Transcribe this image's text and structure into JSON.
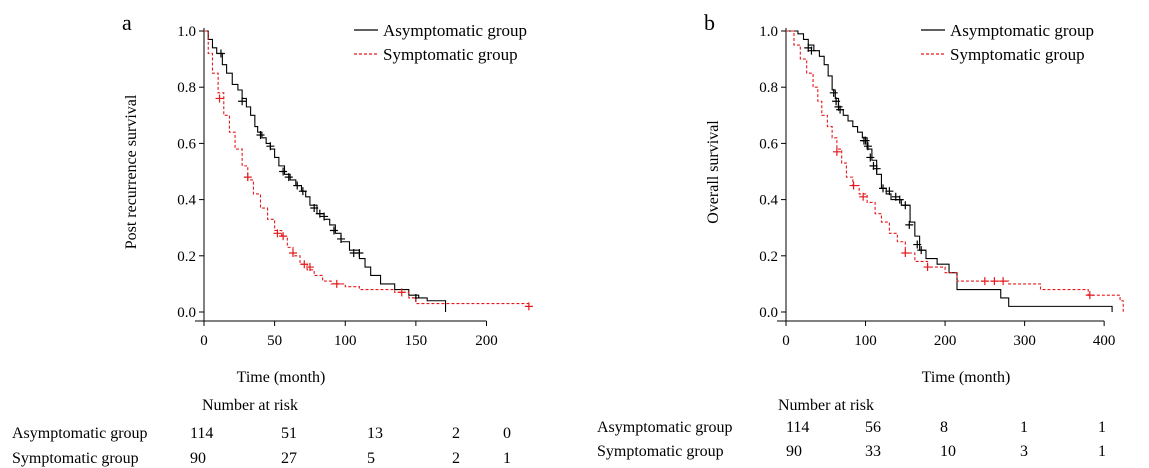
{
  "panels": [
    {
      "letter": "a",
      "ylabel": "Post recurrence survival",
      "xlabel": "Time (month)",
      "risk_title": "Number at risk",
      "risk_rows": [
        {
          "label": "Asymptomatic group",
          "values": [
            "114",
            "51",
            "13",
            "2",
            "0"
          ]
        },
        {
          "label": "Symptomatic group",
          "values": [
            "90",
            "27",
            "5",
            "2",
            "1"
          ]
        }
      ]
    },
    {
      "letter": "b",
      "ylabel": "Overall survival",
      "xlabel": "Time (month)",
      "risk_title": "Number at risk",
      "risk_rows": [
        {
          "label": "Asymptomatic group",
          "values": [
            "114",
            "56",
            "8",
            "1",
            "1"
          ]
        },
        {
          "label": "Symptomatic group",
          "values": [
            "90",
            "33",
            "10",
            "3",
            "1"
          ]
        }
      ]
    }
  ],
  "chart_data": [
    {
      "type": "line",
      "subtype": "kaplan-meier step",
      "title": "",
      "xlabel": "Time (month)",
      "ylabel": "Post recurrence survival",
      "xlim": [
        0,
        240
      ],
      "ylim": [
        0,
        1.0
      ],
      "xticks": [
        0,
        50,
        100,
        150,
        200
      ],
      "yticks": [
        "0.0",
        "0.2",
        "0.4",
        "0.6",
        "0.8",
        "1.0"
      ],
      "legend_position": "top-right",
      "grid": false,
      "series": [
        {
          "name": "Asymptomatic group",
          "color": "#000000",
          "dashed": false,
          "steps": [
            [
              0,
              1.0
            ],
            [
              3,
              0.97
            ],
            [
              6,
              0.94
            ],
            [
              9,
              0.92
            ],
            [
              13,
              0.88
            ],
            [
              16,
              0.85
            ],
            [
              20,
              0.81
            ],
            [
              24,
              0.79
            ],
            [
              27,
              0.76
            ],
            [
              30,
              0.73
            ],
            [
              33,
              0.7
            ],
            [
              36,
              0.66
            ],
            [
              38,
              0.64
            ],
            [
              41,
              0.62
            ],
            [
              44,
              0.6
            ],
            [
              47,
              0.58
            ],
            [
              50,
              0.55
            ],
            [
              53,
              0.52
            ],
            [
              57,
              0.49
            ],
            [
              61,
              0.47
            ],
            [
              65,
              0.45
            ],
            [
              69,
              0.43
            ],
            [
              72,
              0.41
            ],
            [
              75,
              0.38
            ],
            [
              80,
              0.35
            ],
            [
              85,
              0.33
            ],
            [
              89,
              0.31
            ],
            [
              93,
              0.28
            ],
            [
              97,
              0.25
            ],
            [
              103,
              0.22
            ],
            [
              110,
              0.19
            ],
            [
              114,
              0.16
            ],
            [
              118,
              0.13
            ],
            [
              125,
              0.1
            ],
            [
              135,
              0.08
            ],
            [
              145,
              0.06
            ],
            [
              152,
              0.05
            ],
            [
              158,
              0.04
            ],
            [
              171,
              0.0
            ]
          ],
          "censor": [
            [
              12,
              0.92
            ],
            [
              27,
              0.75
            ],
            [
              40,
              0.63
            ],
            [
              47,
              0.59
            ],
            [
              56,
              0.5
            ],
            [
              60,
              0.48
            ],
            [
              66,
              0.45
            ],
            [
              70,
              0.43
            ],
            [
              78,
              0.37
            ],
            [
              82,
              0.35
            ],
            [
              85,
              0.34
            ],
            [
              92,
              0.29
            ],
            [
              97,
              0.26
            ],
            [
              106,
              0.21
            ],
            [
              110,
              0.21
            ],
            [
              150,
              0.05
            ]
          ]
        },
        {
          "name": "Symptomatic group",
          "color": "#e41a1c",
          "dashed": true,
          "steps": [
            [
              0,
              1.0
            ],
            [
              3,
              0.92
            ],
            [
              6,
              0.85
            ],
            [
              10,
              0.78
            ],
            [
              14,
              0.7
            ],
            [
              18,
              0.64
            ],
            [
              22,
              0.58
            ],
            [
              27,
              0.52
            ],
            [
              31,
              0.47
            ],
            [
              35,
              0.42
            ],
            [
              40,
              0.37
            ],
            [
              45,
              0.33
            ],
            [
              50,
              0.29
            ],
            [
              55,
              0.27
            ],
            [
              59,
              0.23
            ],
            [
              63,
              0.2
            ],
            [
              68,
              0.17
            ],
            [
              73,
              0.15
            ],
            [
              78,
              0.13
            ],
            [
              84,
              0.11
            ],
            [
              90,
              0.1
            ],
            [
              100,
              0.09
            ],
            [
              110,
              0.08
            ],
            [
              135,
              0.07
            ],
            [
              145,
              0.05
            ],
            [
              150,
              0.03
            ],
            [
              170,
              0.03
            ],
            [
              230,
              0.02
            ]
          ],
          "censor": [
            [
              11,
              0.76
            ],
            [
              31,
              0.48
            ],
            [
              52,
              0.28
            ],
            [
              56,
              0.27
            ],
            [
              63,
              0.21
            ],
            [
              71,
              0.17
            ],
            [
              75,
              0.16
            ],
            [
              94,
              0.1
            ],
            [
              140,
              0.07
            ],
            [
              230,
              0.02
            ]
          ]
        }
      ]
    },
    {
      "type": "line",
      "subtype": "kaplan-meier step",
      "title": "",
      "xlabel": "Time (month)",
      "ylabel": "Overall survival",
      "xlim": [
        0,
        430
      ],
      "ylim": [
        0,
        1.0
      ],
      "xticks": [
        0,
        100,
        200,
        300,
        400
      ],
      "yticks": [
        "0.0",
        "0.2",
        "0.4",
        "0.6",
        "0.8",
        "1.0"
      ],
      "legend_position": "top-right",
      "grid": false,
      "series": [
        {
          "name": "Asymptomatic group",
          "color": "#000000",
          "dashed": false,
          "steps": [
            [
              0,
              1.0
            ],
            [
              15,
              0.99
            ],
            [
              22,
              0.97
            ],
            [
              28,
              0.95
            ],
            [
              35,
              0.93
            ],
            [
              42,
              0.91
            ],
            [
              48,
              0.88
            ],
            [
              53,
              0.84
            ],
            [
              58,
              0.79
            ],
            [
              62,
              0.76
            ],
            [
              66,
              0.72
            ],
            [
              72,
              0.7
            ],
            [
              78,
              0.68
            ],
            [
              84,
              0.66
            ],
            [
              90,
              0.64
            ],
            [
              96,
              0.62
            ],
            [
              102,
              0.58
            ],
            [
              108,
              0.54
            ],
            [
              114,
              0.49
            ],
            [
              120,
              0.44
            ],
            [
              126,
              0.42
            ],
            [
              132,
              0.4
            ],
            [
              145,
              0.38
            ],
            [
              156,
              0.32
            ],
            [
              162,
              0.27
            ],
            [
              168,
              0.22
            ],
            [
              176,
              0.19
            ],
            [
              190,
              0.17
            ],
            [
              205,
              0.14
            ],
            [
              215,
              0.08
            ],
            [
              270,
              0.05
            ],
            [
              280,
              0.02
            ],
            [
              410,
              0.0
            ]
          ],
          "censor": [
            [
              28,
              0.94
            ],
            [
              32,
              0.93
            ],
            [
              60,
              0.78
            ],
            [
              63,
              0.75
            ],
            [
              66,
              0.73
            ],
            [
              68,
              0.72
            ],
            [
              98,
              0.61
            ],
            [
              100,
              0.61
            ],
            [
              103,
              0.59
            ],
            [
              106,
              0.55
            ],
            [
              110,
              0.52
            ],
            [
              114,
              0.51
            ],
            [
              122,
              0.44
            ],
            [
              130,
              0.43
            ],
            [
              138,
              0.41
            ],
            [
              143,
              0.4
            ],
            [
              150,
              0.38
            ],
            [
              155,
              0.31
            ],
            [
              165,
              0.24
            ],
            [
              170,
              0.22
            ]
          ]
        },
        {
          "name": "Symptomatic group",
          "color": "#e41a1c",
          "dashed": true,
          "steps": [
            [
              0,
              1.0
            ],
            [
              10,
              0.95
            ],
            [
              18,
              0.9
            ],
            [
              26,
              0.85
            ],
            [
              34,
              0.8
            ],
            [
              40,
              0.75
            ],
            [
              45,
              0.7
            ],
            [
              52,
              0.66
            ],
            [
              58,
              0.62
            ],
            [
              64,
              0.58
            ],
            [
              70,
              0.53
            ],
            [
              76,
              0.48
            ],
            [
              84,
              0.45
            ],
            [
              92,
              0.42
            ],
            [
              102,
              0.39
            ],
            [
              112,
              0.35
            ],
            [
              120,
              0.32
            ],
            [
              130,
              0.28
            ],
            [
              140,
              0.25
            ],
            [
              150,
              0.21
            ],
            [
              162,
              0.18
            ],
            [
              178,
              0.16
            ],
            [
              200,
              0.14
            ],
            [
              215,
              0.11
            ],
            [
              280,
              0.1
            ],
            [
              320,
              0.08
            ],
            [
              380,
              0.06
            ],
            [
              420,
              0.04
            ],
            [
              424,
              0.0
            ]
          ],
          "censor": [
            [
              64,
              0.57
            ],
            [
              85,
              0.45
            ],
            [
              97,
              0.41
            ],
            [
              150,
              0.21
            ],
            [
              178,
              0.16
            ],
            [
              250,
              0.11
            ],
            [
              262,
              0.11
            ],
            [
              273,
              0.11
            ],
            [
              382,
              0.06
            ]
          ]
        }
      ]
    }
  ]
}
